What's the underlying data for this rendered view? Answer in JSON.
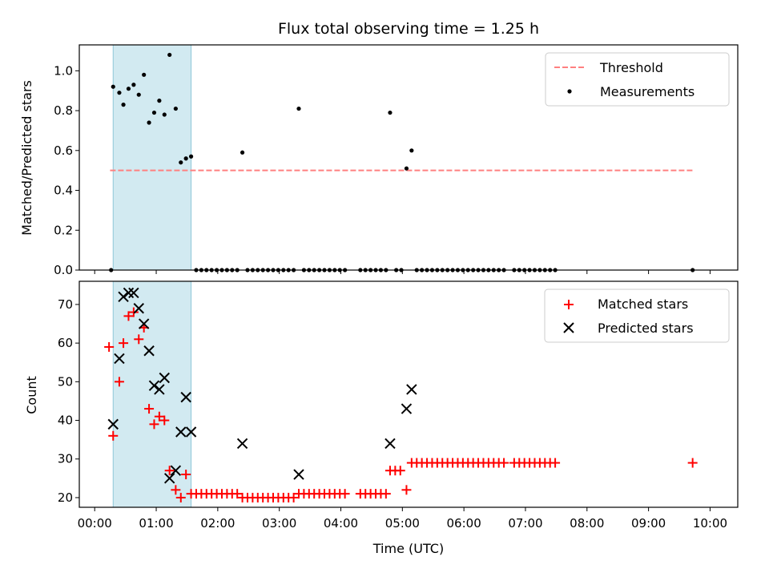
{
  "chart_data": [
    {
      "type": "scatter",
      "title": "Flux total observing time = 1.25 h",
      "ylabel": "Matched/Predicted stars",
      "xlabel": "",
      "ylim": [
        0,
        1.13
      ],
      "yticks": [
        0.0,
        0.2,
        0.4,
        0.6,
        0.8,
        1.0
      ],
      "ytick_labels": [
        "0.0",
        "0.2",
        "0.4",
        "0.6",
        "0.8",
        "1.0"
      ],
      "legend_position": "upper right",
      "threshold": {
        "name": "Threshold",
        "y": 0.5,
        "x_start": "00:15",
        "x_end": "09:43",
        "color": "#ff8080",
        "style": "dashed"
      },
      "shaded_interval": {
        "start": "00:18",
        "end": "01:34",
        "color": "#add8e6"
      },
      "series": [
        {
          "name": "Measurements",
          "color": "#000000",
          "marker": "dot",
          "points": [
            [
              "00:16",
              0.0
            ],
            [
              "00:18",
              0.92
            ],
            [
              "00:24",
              0.89
            ],
            [
              "00:28",
              0.83
            ],
            [
              "00:33",
              0.91
            ],
            [
              "00:38",
              0.93
            ],
            [
              "00:43",
              0.88
            ],
            [
              "00:48",
              0.98
            ],
            [
              "00:53",
              0.74
            ],
            [
              "00:58",
              0.79
            ],
            [
              "01:03",
              0.85
            ],
            [
              "01:08",
              0.78
            ],
            [
              "01:13",
              1.08
            ],
            [
              "01:19",
              0.81
            ],
            [
              "01:24",
              0.54
            ],
            [
              "01:29",
              0.56
            ],
            [
              "01:34",
              0.57
            ],
            [
              "02:24",
              0.59
            ],
            [
              "03:19",
              0.81
            ],
            [
              "04:48",
              0.79
            ],
            [
              "05:04",
              0.51
            ],
            [
              "05:09",
              0.6
            ],
            [
              "09:43",
              0.0
            ]
          ],
          "zero_points": [
            "01:39",
            "01:44",
            "01:49",
            "01:54",
            "01:59",
            "02:04",
            "02:09",
            "02:14",
            "02:19",
            "02:29",
            "02:34",
            "02:39",
            "02:44",
            "02:49",
            "02:54",
            "02:59",
            "03:04",
            "03:09",
            "03:14",
            "03:24",
            "03:29",
            "03:34",
            "03:39",
            "03:44",
            "03:49",
            "03:54",
            "03:59",
            "04:04",
            "04:19",
            "04:24",
            "04:29",
            "04:34",
            "04:39",
            "04:44",
            "04:54",
            "04:59",
            "05:14",
            "05:19",
            "05:24",
            "05:29",
            "05:34",
            "05:39",
            "05:44",
            "05:49",
            "05:54",
            "05:59",
            "06:04",
            "06:09",
            "06:14",
            "06:19",
            "06:24",
            "06:29",
            "06:34",
            "06:39",
            "06:49",
            "06:54",
            "06:59",
            "07:04",
            "07:09",
            "07:14",
            "07:19",
            "07:24",
            "07:29"
          ]
        }
      ]
    },
    {
      "type": "scatter",
      "title": "",
      "ylabel": "Count",
      "xlabel": "Time (UTC)",
      "ylim": [
        17.5,
        76
      ],
      "yticks": [
        20,
        30,
        40,
        50,
        60,
        70
      ],
      "ytick_labels": [
        "20",
        "30",
        "40",
        "50",
        "60",
        "70"
      ],
      "xlim": [
        "-00:15",
        "10:27"
      ],
      "xticks": [
        "00:00",
        "01:00",
        "02:00",
        "03:00",
        "04:00",
        "05:00",
        "06:00",
        "07:00",
        "08:00",
        "09:00",
        "10:00"
      ],
      "legend_position": "upper right",
      "shaded_interval": {
        "start": "00:18",
        "end": "01:34",
        "color": "#add8e6"
      },
      "series": [
        {
          "name": "Matched stars",
          "color": "#ff0000",
          "marker": "plus",
          "points": [
            [
              "00:14",
              59
            ],
            [
              "00:18",
              36
            ],
            [
              "00:24",
              50
            ],
            [
              "00:28",
              60
            ],
            [
              "00:33",
              67
            ],
            [
              "00:38",
              68
            ],
            [
              "00:43",
              61
            ],
            [
              "00:48",
              64
            ],
            [
              "00:53",
              43
            ],
            [
              "00:58",
              39
            ],
            [
              "01:03",
              41
            ],
            [
              "01:08",
              40
            ],
            [
              "01:13",
              27
            ],
            [
              "01:19",
              22
            ],
            [
              "01:24",
              20
            ],
            [
              "01:29",
              26
            ],
            [
              "09:43",
              29
            ],
            [
              "05:04",
              22
            ]
          ],
          "runs": [
            {
              "start": "01:34",
              "end": "02:19",
              "step": 5,
              "value": 21
            },
            {
              "start": "02:24",
              "end": "03:14",
              "step": 5,
              "value": 20
            },
            {
              "start": "03:19",
              "end": "04:04",
              "step": 5,
              "value": 21
            },
            {
              "start": "04:19",
              "end": "04:44",
              "step": 5,
              "value": 21
            },
            {
              "start": "04:48",
              "end": "04:59",
              "step": 5,
              "value": 27
            },
            {
              "start": "05:09",
              "end": "06:39",
              "step": 5,
              "value": 29
            },
            {
              "start": "06:49",
              "end": "07:29",
              "step": 5,
              "value": 29
            }
          ]
        },
        {
          "name": "Predicted stars",
          "color": "#000000",
          "marker": "x",
          "points": [
            [
              "00:18",
              39
            ],
            [
              "00:24",
              56
            ],
            [
              "00:28",
              72
            ],
            [
              "00:33",
              73
            ],
            [
              "00:38",
              73
            ],
            [
              "00:43",
              69
            ],
            [
              "00:48",
              65
            ],
            [
              "00:53",
              58
            ],
            [
              "00:58",
              49
            ],
            [
              "01:03",
              48
            ],
            [
              "01:08",
              51
            ],
            [
              "01:13",
              25
            ],
            [
              "01:19",
              27
            ],
            [
              "01:24",
              37
            ],
            [
              "01:29",
              46
            ],
            [
              "01:34",
              37
            ],
            [
              "02:24",
              34
            ],
            [
              "03:19",
              26
            ],
            [
              "04:48",
              34
            ],
            [
              "05:04",
              43
            ],
            [
              "05:09",
              48
            ]
          ]
        }
      ]
    }
  ]
}
